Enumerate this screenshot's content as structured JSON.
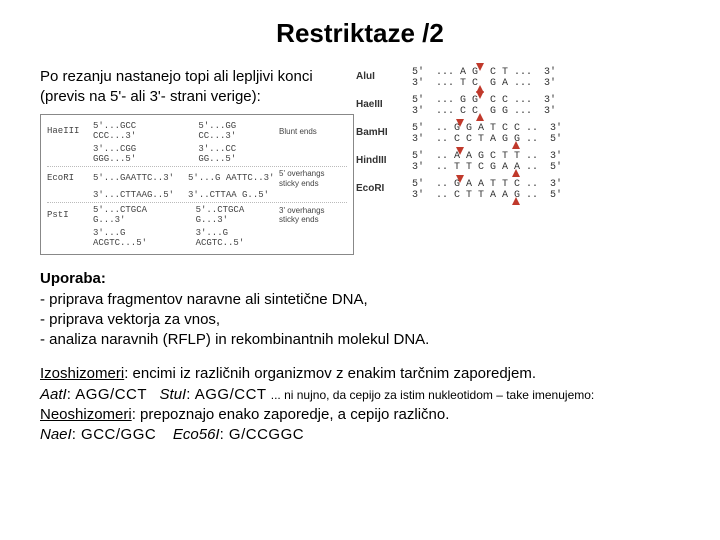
{
  "title": "Restriktaze /2",
  "intro": "Po rezanju nastanejo topi ali lepljivi konci (previs na 5'- ali 3'- strani verige):",
  "left_figure": {
    "rows": [
      {
        "name": "HaeIII",
        "a1": "5'...GCC",
        "a2": "CCC...3'",
        "b1": "5'...GG",
        "b2": "CC...3'",
        "c1": "3'...CGG",
        "c2": "GGG...5'",
        "d1": "3'...CC",
        "d2": "GG...5'",
        "label": "Blunt ends"
      },
      {
        "name": "EcoRI",
        "a1": "5'...GAATTC..3'",
        "a2": "",
        "b1": "5'...G",
        "b2": "AATTC..3'",
        "c1": "3'...CTTAAG..5'",
        "c2": "",
        "d1": "3'..CTTAA",
        "d2": "G..5'",
        "label": "5' overhangs\nsticky ends"
      },
      {
        "name": "PstI",
        "a1": "5'...CTGCA",
        "a2": "G...3'",
        "b1": "5'..CTGCA",
        "b2": "G...3'",
        "c1": "3'...G",
        "c2": "ACGTC...5'",
        "d1": "3'...G",
        "d2": "ACGTC..5'",
        "label": "3' overhangs\nsticky ends"
      }
    ]
  },
  "right_figure": {
    "rows": [
      {
        "name": "AluI",
        "top": "5'  ... A G  C T ...  3'",
        "bot": "3'  ... T C  G A ...  3'",
        "d": 64,
        "u": 64
      },
      {
        "name": "HaeIII",
        "top": "5'  ... G G  C C ...  3'",
        "bot": "3'  ... C C  G G ...  3'",
        "d": 64,
        "u": 64
      },
      {
        "name": "BamHI",
        "top": "5'  .. G G A T C C ..  3'",
        "bot": "3'  .. C C T A G G ..  5'",
        "d": 44,
        "u": 100
      },
      {
        "name": "HindIII",
        "top": "5'  .. A A G C T T ..  3'",
        "bot": "3'  .. T T C G A A ..  5'",
        "d": 44,
        "u": 100
      },
      {
        "name": "EcoRI",
        "top": "5'  .. G A A T T C ..  3'",
        "bot": "3'  .. C T T A A G ..  5'",
        "d": 44,
        "u": 100
      }
    ]
  },
  "usage": {
    "heading": "Uporaba:",
    "items": [
      "- priprava fragmentov naravne ali sintetične DNA,",
      "- priprava vektorja za vnos,",
      "- analiza naravnih (RFLP) in rekombinantnih molekul DNA."
    ]
  },
  "izo": {
    "label": "Izoshizomeri",
    "text": ": encimi iz različnih organizmov z enakim tarčnim zaporedjem.",
    "e1_name": "AatI",
    "e1_seq": ": AGG/CCT",
    "e2_name": "StuI",
    "e2_seq": ": AGG/CCT",
    "note": " ... ni nujno, da cepijo za istim nukleotidom – take imenujemo:"
  },
  "neo": {
    "label": "Neoshizomeri",
    "text": ": prepoznajo enako zaporedje, a cepijo različno.",
    "e1_name": "NaeI",
    "e1_seq": ": GCC/GGC",
    "e2_name": "Eco56I",
    "e2_seq": ": G/CCGGC"
  }
}
